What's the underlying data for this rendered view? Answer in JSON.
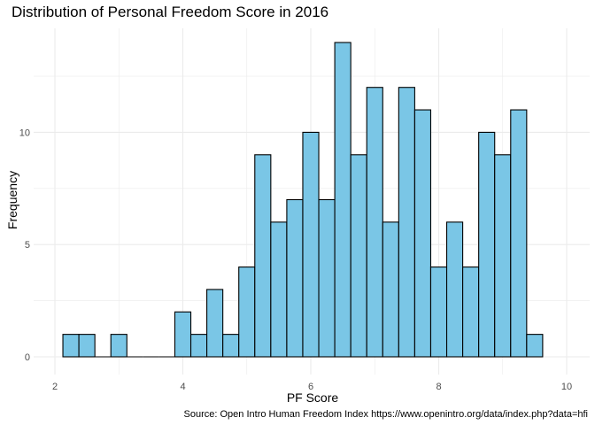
{
  "chart_data": {
    "type": "bar",
    "title": "Distribution of Personal Freedom Score in 2016",
    "xlabel": "PF Score",
    "ylabel": "Frequency",
    "caption": "Source: Open Intro Human Freedom Index https://www.openintro.org/data/index.php?data=hfi",
    "xlim": [
      2,
      10
    ],
    "ylim": [
      0,
      14
    ],
    "x_ticks": [
      2,
      4,
      6,
      8,
      10
    ],
    "y_ticks": [
      0,
      5,
      10
    ],
    "grid": true,
    "bin_width": 0.25,
    "bin_starts": [
      2.125,
      2.375,
      2.625,
      2.875,
      3.125,
      3.375,
      3.625,
      3.875,
      4.125,
      4.375,
      4.625,
      4.875,
      5.125,
      5.375,
      5.625,
      5.875,
      6.125,
      6.375,
      6.625,
      6.875,
      7.125,
      7.375,
      7.625,
      7.875,
      8.125,
      8.375,
      8.625,
      8.875,
      9.125,
      9.375
    ],
    "values": [
      1,
      1,
      0,
      1,
      0,
      0,
      0,
      2,
      1,
      3,
      1,
      4,
      9,
      6,
      7,
      10,
      7,
      14,
      9,
      12,
      6,
      12,
      11,
      4,
      6,
      4,
      10,
      9,
      11,
      1
    ],
    "bar_fill": "#7ac6e6",
    "bar_stroke": "#000000",
    "grid_color": "#ebebeb"
  }
}
